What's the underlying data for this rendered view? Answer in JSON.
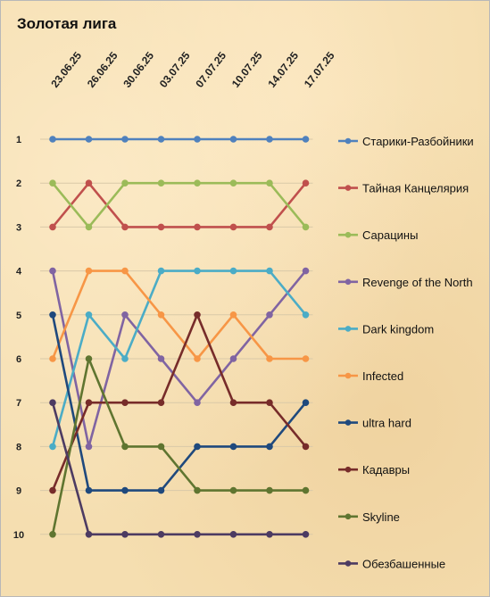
{
  "chart_data": {
    "type": "line",
    "title": "Золотая лига",
    "x": [
      "23.06.25",
      "26.06.25",
      "30.06.25",
      "03.07.25",
      "07.07.25",
      "10.07.25",
      "14.07.25",
      "17.07.25"
    ],
    "y_ticks": [
      "1",
      "2",
      "3",
      "4",
      "5",
      "6",
      "7",
      "8",
      "9",
      "10"
    ],
    "ylim": [
      1,
      10
    ],
    "y_inverted": true,
    "grid": true,
    "legend_position": "right",
    "series": [
      {
        "name": "Старики-Разбойники",
        "color": "#4f81bd",
        "values": [
          1,
          1,
          1,
          1,
          1,
          1,
          1,
          1
        ]
      },
      {
        "name": "Тайная Канцелярия",
        "color": "#c0504d",
        "values": [
          3,
          2,
          3,
          3,
          3,
          3,
          3,
          2
        ]
      },
      {
        "name": "Сарацины",
        "color": "#9bbb59",
        "values": [
          2,
          3,
          2,
          2,
          2,
          2,
          2,
          3
        ]
      },
      {
        "name": "Revenge of the North",
        "color": "#8064a2",
        "values": [
          4,
          8,
          5,
          6,
          7,
          6,
          5,
          4
        ]
      },
      {
        "name": "Dark kingdom",
        "color": "#4bacc6",
        "values": [
          8,
          5,
          6,
          4,
          4,
          4,
          4,
          5
        ]
      },
      {
        "name": "Infected",
        "color": "#f79646",
        "values": [
          6,
          4,
          4,
          5,
          6,
          5,
          6,
          6
        ]
      },
      {
        "name": "ultra hard",
        "color": "#1f497d",
        "values": [
          5,
          9,
          9,
          9,
          8,
          8,
          8,
          7
        ]
      },
      {
        "name": "Кадавры",
        "color": "#772c2a",
        "values": [
          9,
          7,
          7,
          7,
          5,
          7,
          7,
          8
        ]
      },
      {
        "name": "Skyline",
        "color": "#5f7530",
        "values": [
          10,
          6,
          8,
          8,
          9,
          9,
          9,
          9
        ]
      },
      {
        "name": "Обезбашенные",
        "color": "#4d3b62",
        "values": [
          7,
          10,
          10,
          10,
          10,
          10,
          10,
          10
        ]
      }
    ]
  }
}
